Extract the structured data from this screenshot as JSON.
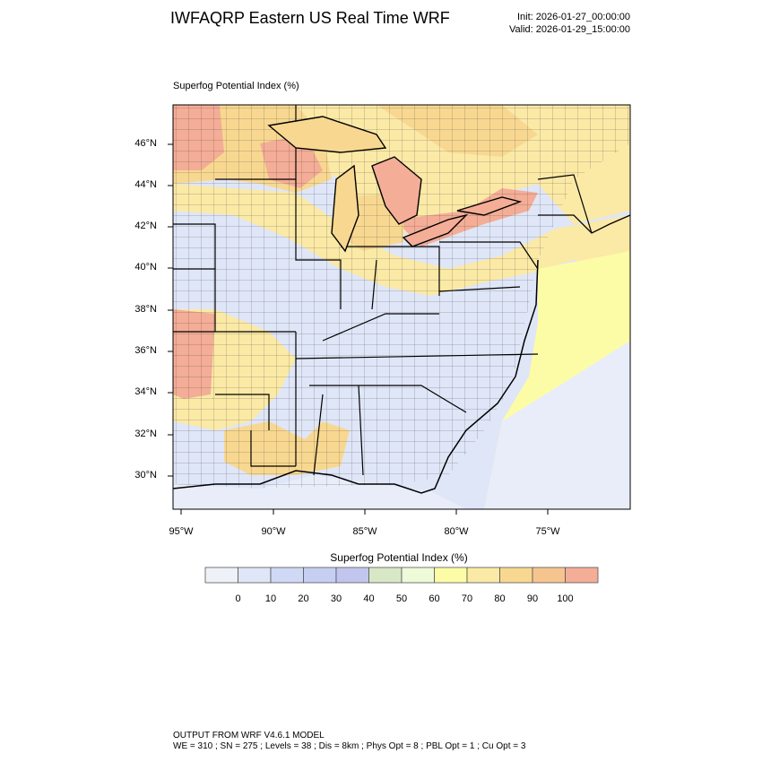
{
  "header": {
    "title": "IWFAQRP Eastern US Real Time WRF",
    "init": "Init: 2026-01-27_00:00:00",
    "valid": "Valid: 2026-01-29_15:00:00"
  },
  "map": {
    "field_label": "Superfog Potential Index   (%)",
    "lat_labels": [
      "46°N",
      "44°N",
      "42°N",
      "40°N",
      "38°N",
      "36°N",
      "34°N",
      "32°N",
      "30°N"
    ],
    "lon_labels": [
      "95°W",
      "90°W",
      "85°W",
      "80°W",
      "75°W"
    ]
  },
  "colorbar": {
    "title": "Superfog Potential Index  (%)",
    "colors": [
      "#eef1f8",
      "#dfe6f7",
      "#cfd9f5",
      "#c6cff2",
      "#c2c6ef",
      "#d8e8c6",
      "#eefad8",
      "#fdfca6",
      "#fbe9a6",
      "#f8d891",
      "#f6c58f",
      "#f4ad96"
    ],
    "ticks": [
      "0",
      "10",
      "20",
      "30",
      "40",
      "50",
      "60",
      "70",
      "80",
      "90",
      "100"
    ]
  },
  "footer": {
    "line1": "OUTPUT FROM WRF V4.6.1 MODEL",
    "line2": "WE = 310 ; SN = 275 ; Levels = 38 ; Dis = 8km ; Phys Opt = 8 ; PBL Opt = 1 ; Cu Opt = 3"
  }
}
